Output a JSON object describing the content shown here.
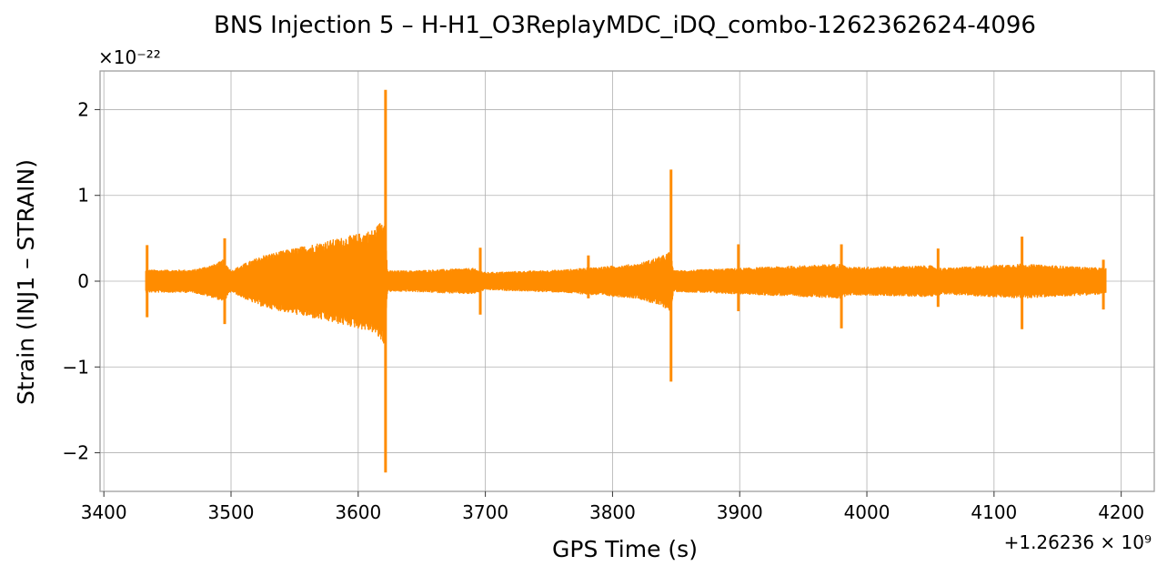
{
  "chart_data": {
    "type": "line",
    "title": "BNS Injection 5 – H-H1_O3ReplayMDC_iDQ_combo-1262362624-4096",
    "xlabel": "GPS Time (s)",
    "ylabel": "Strain (INJ1 – STRAIN)",
    "x_offset_label": "+1.26236 × 10⁹",
    "y_scale_label": "×10⁻²²",
    "xlim": [
      3397,
      4226
    ],
    "ylim": [
      -2.45,
      2.45
    ],
    "x_ticks": [
      3400,
      3500,
      3600,
      3700,
      3800,
      3900,
      4000,
      4100,
      4200
    ],
    "x_tick_labels": [
      "3400",
      "3500",
      "3600",
      "3700",
      "3800",
      "3900",
      "4000",
      "4100",
      "4200"
    ],
    "y_ticks": [
      -2,
      -1,
      0,
      1,
      2
    ],
    "y_tick_labels": [
      "−2",
      "−1",
      "0",
      "1",
      "2"
    ],
    "grid": true,
    "line_color": "#ff8c00",
    "series": [
      {
        "x_start": 3433,
        "x_end": 4188,
        "baseline_envelope": 0.11,
        "envelope_points": [
          [
            3433,
            0.13
          ],
          [
            3470,
            0.13
          ],
          [
            3488,
            0.2
          ],
          [
            3494,
            0.25
          ],
          [
            3500,
            0.12
          ],
          [
            3510,
            0.2
          ],
          [
            3525,
            0.3
          ],
          [
            3540,
            0.35
          ],
          [
            3555,
            0.4
          ],
          [
            3570,
            0.45
          ],
          [
            3585,
            0.5
          ],
          [
            3600,
            0.55
          ],
          [
            3612,
            0.6
          ],
          [
            3618,
            0.7
          ],
          [
            3621,
            0.75
          ],
          [
            3623,
            0.12
          ],
          [
            3640,
            0.12
          ],
          [
            3690,
            0.15
          ],
          [
            3700,
            0.1
          ],
          [
            3760,
            0.13
          ],
          [
            3820,
            0.2
          ],
          [
            3840,
            0.3
          ],
          [
            3846,
            0.35
          ],
          [
            3848,
            0.12
          ],
          [
            3900,
            0.15
          ],
          [
            3950,
            0.18
          ],
          [
            3980,
            0.2
          ],
          [
            3985,
            0.16
          ],
          [
            4050,
            0.18
          ],
          [
            4060,
            0.15
          ],
          [
            4120,
            0.2
          ],
          [
            4188,
            0.15
          ]
        ],
        "glitches": [
          {
            "x": 3434,
            "max": 0.42,
            "min": -0.42
          },
          {
            "x": 3495,
            "max": 0.5,
            "min": -0.5
          },
          {
            "x": 3621.5,
            "max": 2.23,
            "min": -2.23
          },
          {
            "x": 3696,
            "max": 0.39,
            "min": -0.39
          },
          {
            "x": 3781,
            "max": 0.3,
            "min": -0.2
          },
          {
            "x": 3846,
            "max": 1.3,
            "min": -1.17
          },
          {
            "x": 3899,
            "max": 0.43,
            "min": -0.35
          },
          {
            "x": 3980,
            "max": 0.43,
            "min": -0.55
          },
          {
            "x": 4056,
            "max": 0.38,
            "min": -0.3
          },
          {
            "x": 4122,
            "max": 0.52,
            "min": -0.56
          },
          {
            "x": 4186,
            "max": 0.25,
            "min": -0.33
          }
        ]
      }
    ]
  }
}
